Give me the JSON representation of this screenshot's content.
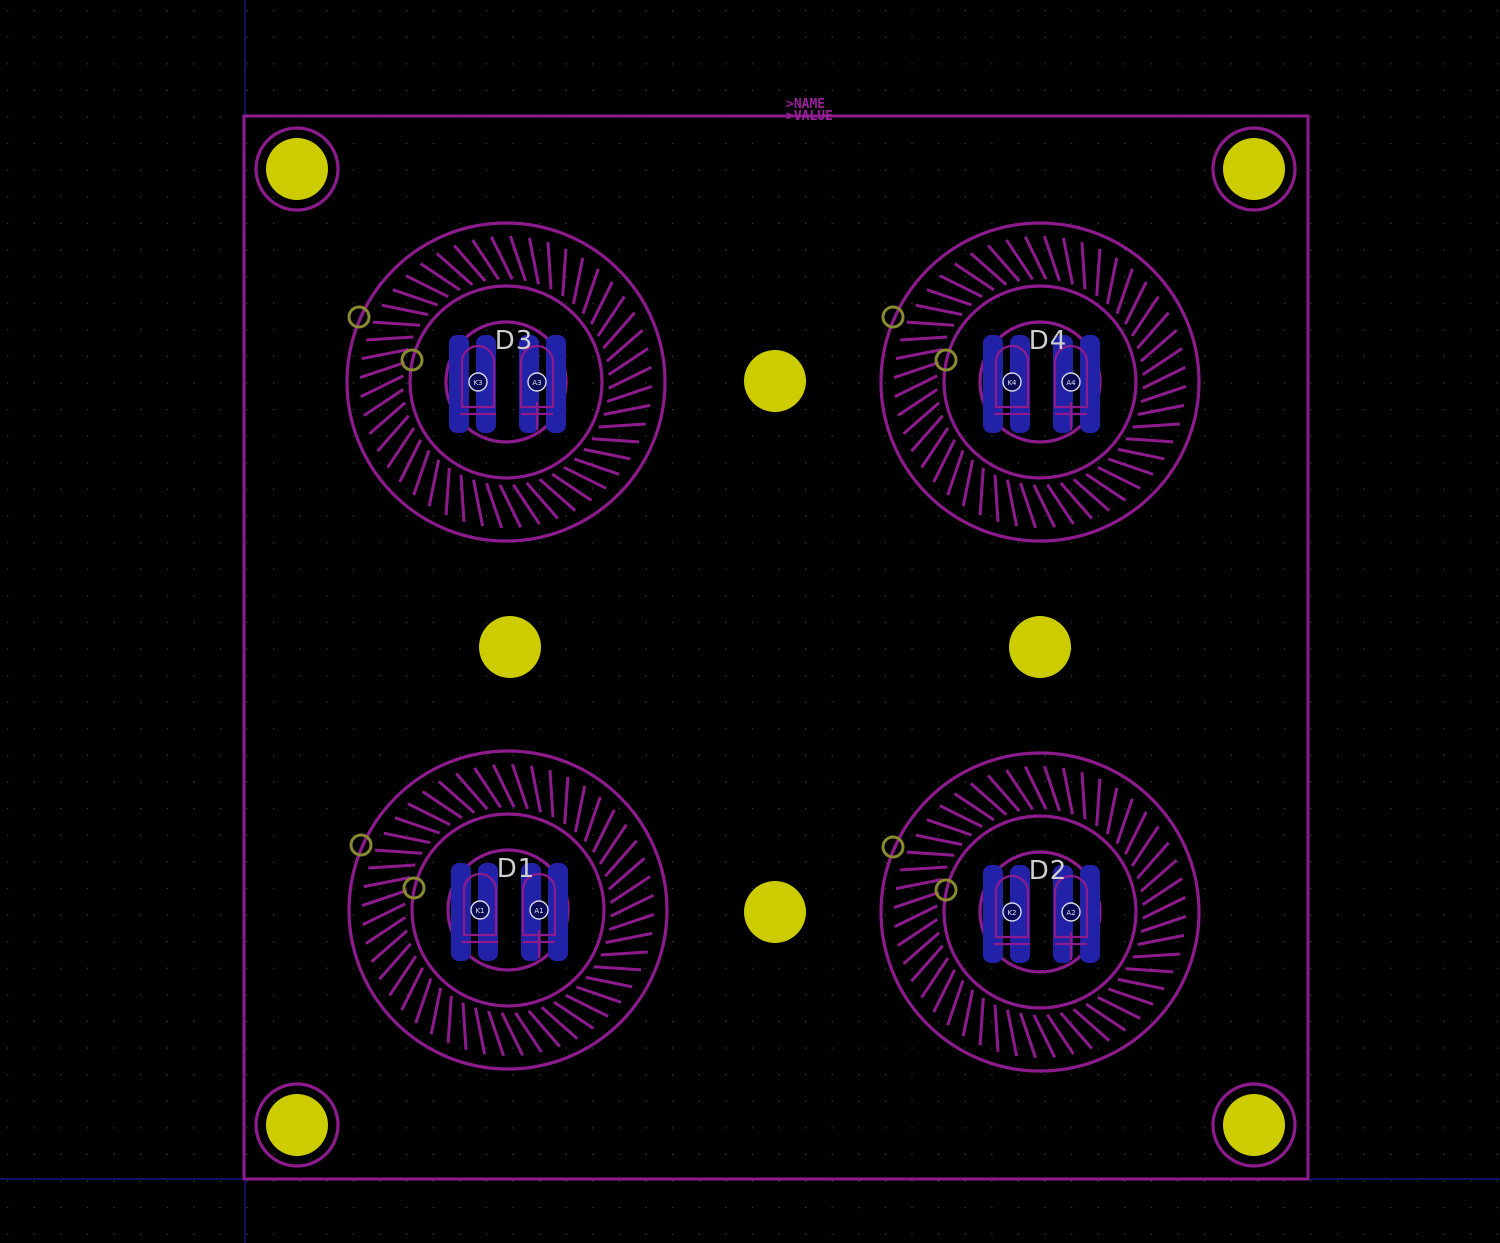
{
  "board": {
    "name_label": ">NAME",
    "value_label": ">VALUE"
  },
  "colors": {
    "background": "#000000",
    "silkscreen": "#8e1b8e",
    "drill_hole": "#cccc00",
    "copper": "#2222a8",
    "origin_axis": "#1a1aa0",
    "grid_dot": "#3a3a3a"
  },
  "leds": [
    {
      "ref": "D3",
      "pads": [
        "K3",
        "A3"
      ]
    },
    {
      "ref": "D4",
      "pads": [
        "K4",
        "A4"
      ]
    },
    {
      "ref": "D1",
      "pads": [
        "K1",
        "A1"
      ]
    },
    {
      "ref": "D2",
      "pads": [
        "K2",
        "A2"
      ]
    }
  ]
}
